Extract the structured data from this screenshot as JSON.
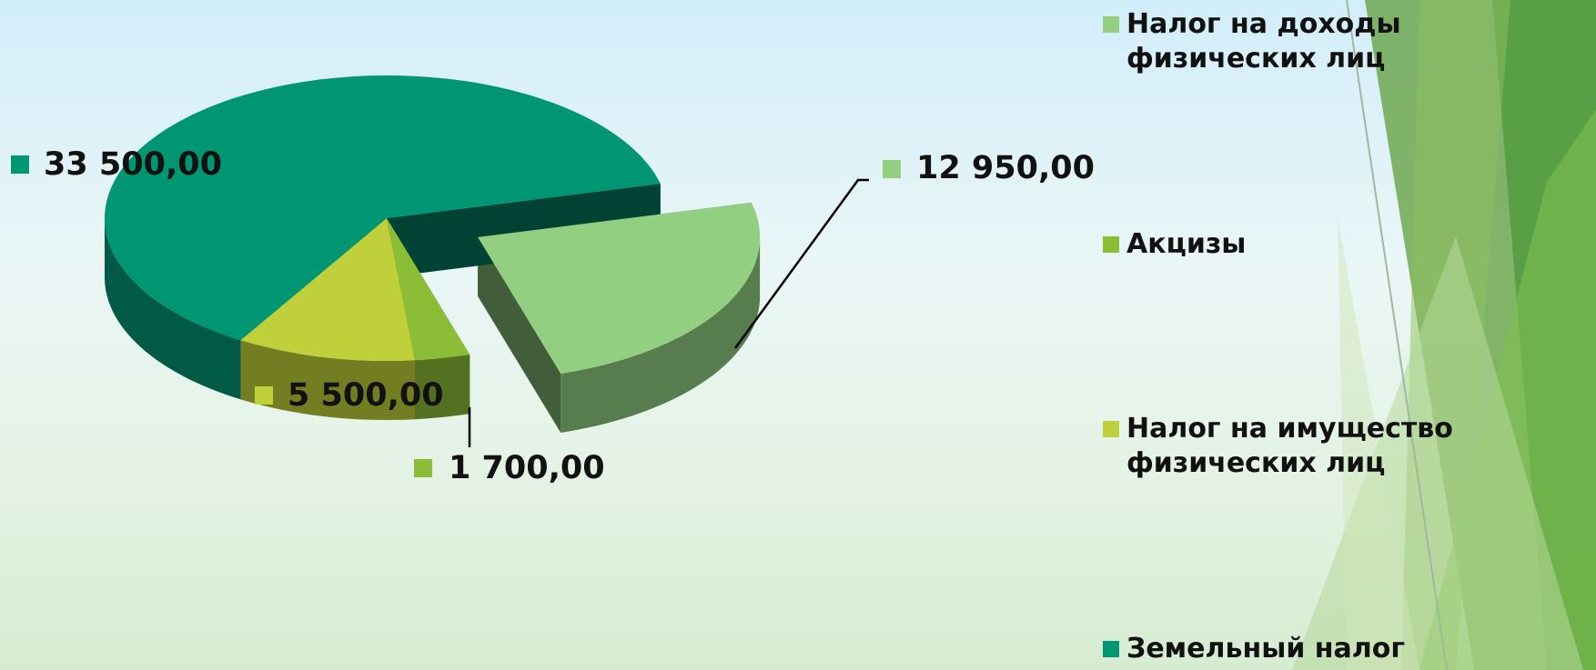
{
  "chart_data": {
    "type": "pie",
    "categories": [
      "Налог на доходы физических лиц",
      "Акцизы",
      "Налог на имущество физических лиц",
      "Земельный налог"
    ],
    "values": [
      12950,
      1700,
      5500,
      33500
    ],
    "value_labels": [
      "12 950,00",
      "1 700,00",
      "5 500,00",
      "33 500,00"
    ],
    "colors": [
      "#92cf80",
      "#8cbd37",
      "#c0d03a",
      "#009674"
    ],
    "legend": "right"
  }
}
